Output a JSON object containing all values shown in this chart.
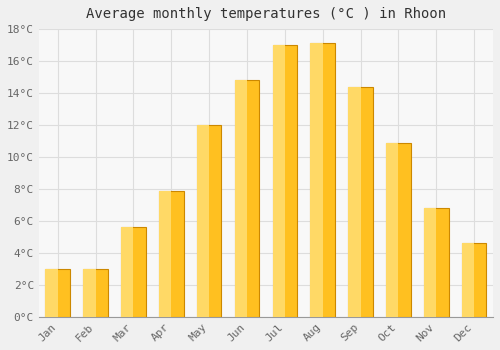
{
  "title": "Average monthly temperatures (°C ) in Rhoon",
  "months": [
    "Jan",
    "Feb",
    "Mar",
    "Apr",
    "May",
    "Jun",
    "Jul",
    "Aug",
    "Sep",
    "Oct",
    "Nov",
    "Dec"
  ],
  "temperatures": [
    3.0,
    3.0,
    5.6,
    7.9,
    12.0,
    14.8,
    17.0,
    17.1,
    14.4,
    10.9,
    6.8,
    4.6
  ],
  "bar_color_face": "#FFC020",
  "bar_color_edge": "#CC8800",
  "background_color": "#F0F0F0",
  "plot_background": "#F8F8F8",
  "grid_color": "#DDDDDD",
  "ylim": [
    0,
    18
  ],
  "yticks": [
    0,
    2,
    4,
    6,
    8,
    10,
    12,
    14,
    16,
    18
  ],
  "title_fontsize": 10,
  "tick_fontsize": 8,
  "tick_label_color": "#666666",
  "title_color": "#333333",
  "bar_width": 0.65
}
